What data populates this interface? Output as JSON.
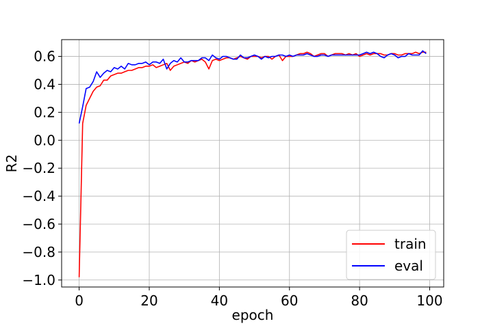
{
  "chart_data": {
    "type": "line",
    "title": "",
    "xlabel": "epoch",
    "ylabel": "R2",
    "xlim": [
      -5,
      104
    ],
    "ylim": [
      -1.05,
      0.72
    ],
    "xticks": [
      0,
      20,
      40,
      60,
      80,
      100
    ],
    "xtick_labels": [
      "0",
      "20",
      "40",
      "60",
      "80",
      "100"
    ],
    "yticks": [
      -1.0,
      -0.8,
      -0.6,
      -0.4,
      -0.2,
      0.0,
      0.2,
      0.4,
      0.6
    ],
    "ytick_labels": [
      "−1.0",
      "−0.8",
      "−0.6",
      "−0.4",
      "−0.2",
      "0.0",
      "0.2",
      "0.4",
      "0.6"
    ],
    "grid": true,
    "legend_position": "bottom-right",
    "series": [
      {
        "name": "train",
        "color": "#ff0000",
        "x": [
          0,
          1,
          2,
          3,
          4,
          5,
          6,
          7,
          8,
          9,
          10,
          11,
          12,
          13,
          14,
          15,
          16,
          17,
          18,
          19,
          20,
          21,
          22,
          23,
          24,
          25,
          26,
          27,
          28,
          29,
          30,
          31,
          32,
          33,
          34,
          35,
          36,
          37,
          38,
          39,
          40,
          41,
          42,
          43,
          44,
          45,
          46,
          47,
          48,
          49,
          50,
          51,
          52,
          53,
          54,
          55,
          56,
          57,
          58,
          59,
          60,
          61,
          62,
          63,
          64,
          65,
          66,
          67,
          68,
          69,
          70,
          71,
          72,
          73,
          74,
          75,
          76,
          77,
          78,
          79,
          80,
          81,
          82,
          83,
          84,
          85,
          86,
          87,
          88,
          89,
          90,
          91,
          92,
          93,
          94,
          95,
          96,
          97,
          98,
          99
        ],
        "y": [
          -0.98,
          0.12,
          0.25,
          0.3,
          0.35,
          0.38,
          0.39,
          0.43,
          0.43,
          0.46,
          0.47,
          0.48,
          0.48,
          0.49,
          0.5,
          0.5,
          0.51,
          0.52,
          0.52,
          0.53,
          0.53,
          0.54,
          0.52,
          0.53,
          0.54,
          0.55,
          0.5,
          0.53,
          0.54,
          0.55,
          0.56,
          0.55,
          0.57,
          0.56,
          0.57,
          0.58,
          0.56,
          0.51,
          0.57,
          0.58,
          0.57,
          0.58,
          0.59,
          0.59,
          0.58,
          0.59,
          0.6,
          0.59,
          0.58,
          0.6,
          0.6,
          0.6,
          0.59,
          0.6,
          0.6,
          0.58,
          0.6,
          0.61,
          0.57,
          0.6,
          0.6,
          0.6,
          0.61,
          0.62,
          0.62,
          0.63,
          0.62,
          0.6,
          0.61,
          0.62,
          0.62,
          0.6,
          0.61,
          0.62,
          0.62,
          0.62,
          0.61,
          0.62,
          0.61,
          0.62,
          0.6,
          0.61,
          0.62,
          0.61,
          0.62,
          0.62,
          0.62,
          0.61,
          0.61,
          0.62,
          0.62,
          0.61,
          0.61,
          0.62,
          0.62,
          0.62,
          0.63,
          0.62,
          0.63,
          0.63
        ]
      },
      {
        "name": "eval",
        "color": "#0000ff",
        "x": [
          0,
          1,
          2,
          3,
          4,
          5,
          6,
          7,
          8,
          9,
          10,
          11,
          12,
          13,
          14,
          15,
          16,
          17,
          18,
          19,
          20,
          21,
          22,
          23,
          24,
          25,
          26,
          27,
          28,
          29,
          30,
          31,
          32,
          33,
          34,
          35,
          36,
          37,
          38,
          39,
          40,
          41,
          42,
          43,
          44,
          45,
          46,
          47,
          48,
          49,
          50,
          51,
          52,
          53,
          54,
          55,
          56,
          57,
          58,
          59,
          60,
          61,
          62,
          63,
          64,
          65,
          66,
          67,
          68,
          69,
          70,
          71,
          72,
          73,
          74,
          75,
          76,
          77,
          78,
          79,
          80,
          81,
          82,
          83,
          84,
          85,
          86,
          87,
          88,
          89,
          90,
          91,
          92,
          93,
          94,
          95,
          96,
          97,
          98,
          99
        ],
        "y": [
          0.12,
          0.24,
          0.37,
          0.38,
          0.42,
          0.49,
          0.45,
          0.48,
          0.5,
          0.49,
          0.52,
          0.51,
          0.53,
          0.51,
          0.55,
          0.54,
          0.54,
          0.55,
          0.55,
          0.56,
          0.54,
          0.56,
          0.56,
          0.55,
          0.58,
          0.51,
          0.55,
          0.57,
          0.56,
          0.59,
          0.56,
          0.56,
          0.57,
          0.57,
          0.57,
          0.59,
          0.59,
          0.57,
          0.61,
          0.59,
          0.58,
          0.6,
          0.6,
          0.59,
          0.58,
          0.58,
          0.61,
          0.59,
          0.59,
          0.6,
          0.61,
          0.6,
          0.58,
          0.6,
          0.59,
          0.6,
          0.6,
          0.61,
          0.61,
          0.6,
          0.61,
          0.6,
          0.61,
          0.61,
          0.61,
          0.62,
          0.61,
          0.6,
          0.6,
          0.61,
          0.61,
          0.6,
          0.61,
          0.61,
          0.61,
          0.61,
          0.61,
          0.61,
          0.61,
          0.61,
          0.61,
          0.62,
          0.63,
          0.62,
          0.63,
          0.62,
          0.6,
          0.59,
          0.61,
          0.62,
          0.61,
          0.59,
          0.6,
          0.6,
          0.62,
          0.61,
          0.61,
          0.61,
          0.64,
          0.62
        ]
      }
    ]
  }
}
